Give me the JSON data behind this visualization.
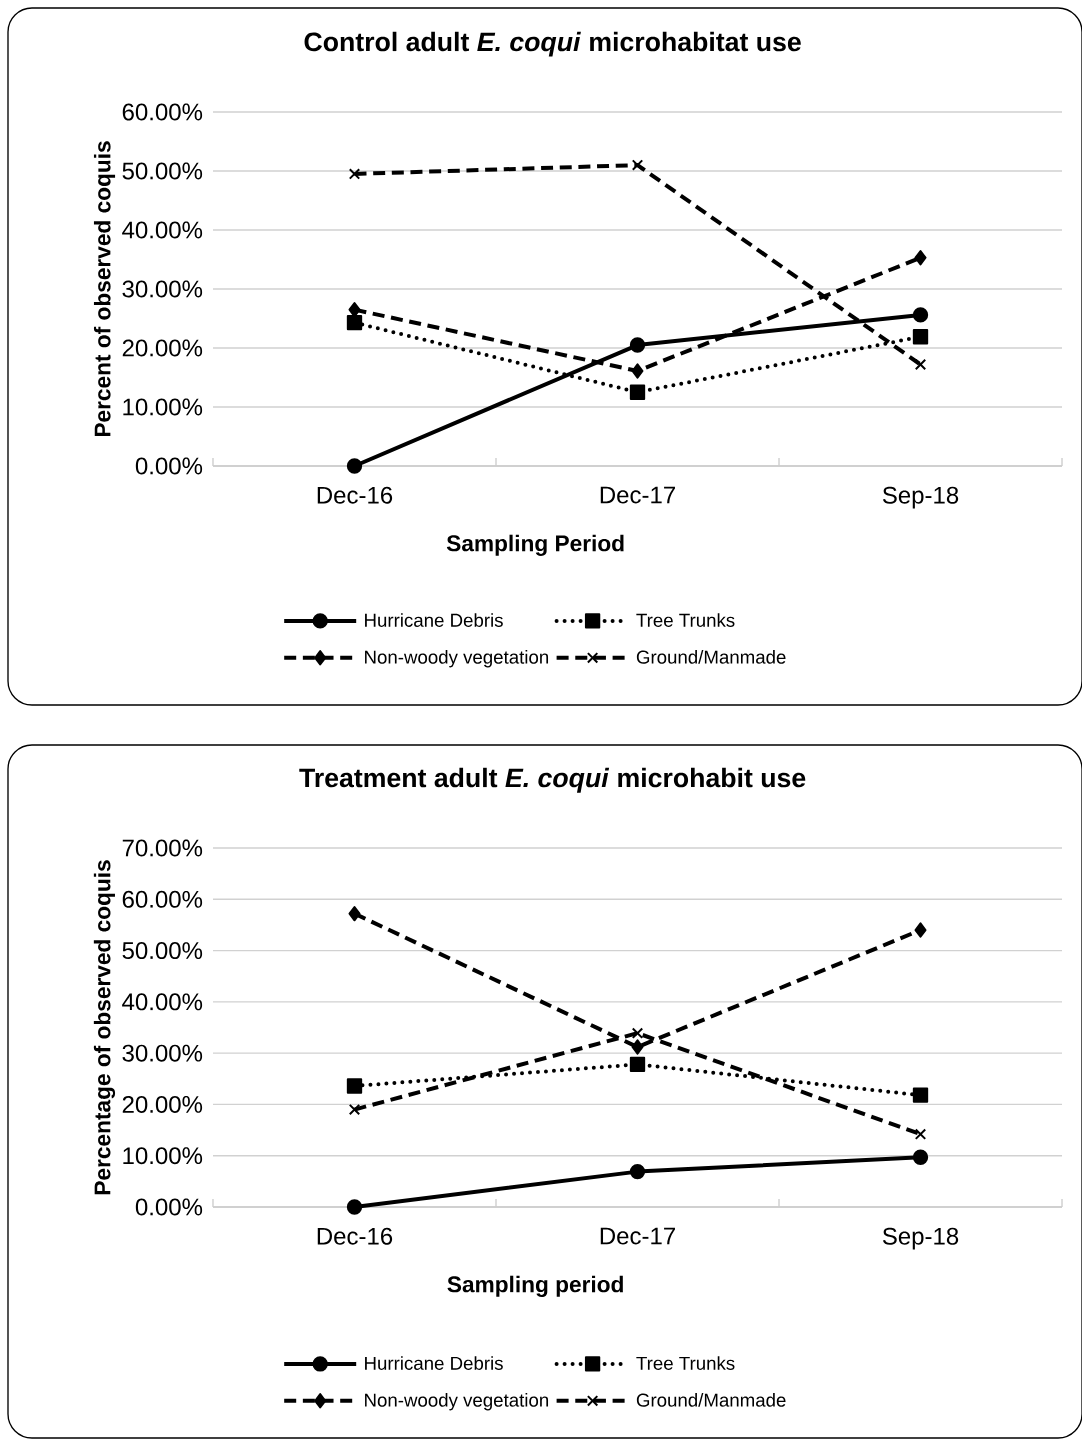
{
  "chart_data": [
    {
      "type": "line",
      "title": "Control adult *E. coqui* microhabitat use",
      "xlabel": "Sampling Period",
      "ylabel": "Percent of observed coquis",
      "categories": [
        "Dec-16",
        "Dec-17",
        "Sep-18"
      ],
      "ylim": [
        0,
        60
      ],
      "yticks": [
        {
          "value": 0,
          "label": "0.00%"
        },
        {
          "value": 10,
          "label": "10.00%"
        },
        {
          "value": 20,
          "label": "20.00%"
        },
        {
          "value": 30,
          "label": "30.00%"
        },
        {
          "value": 40,
          "label": "40.00%"
        },
        {
          "value": 50,
          "label": "50.00%"
        },
        {
          "value": 60,
          "label": "60.00%"
        }
      ],
      "grid": "y",
      "legend": "bottom",
      "series": [
        {
          "name": "Hurricane Debris",
          "color": "#000000",
          "marker": "circle",
          "line_style": "solid",
          "values": [
            0,
            20.5,
            25.6
          ]
        },
        {
          "name": "Tree Trunks",
          "color": "#000000",
          "marker": "square",
          "line_style": "dotted",
          "values": [
            24.3,
            12.5,
            21.9
          ]
        },
        {
          "name": "Non-woody vegetation",
          "color": "#000000",
          "marker": "diamond",
          "line_style": "dashed",
          "values": [
            26.5,
            16.1,
            35.3
          ]
        },
        {
          "name": "Ground/Manmade",
          "color": "#000000",
          "marker": "cross",
          "line_style": "dashed",
          "values": [
            49.5,
            51.0,
            17.2
          ]
        }
      ]
    },
    {
      "type": "line",
      "title": "Treatment adult *E. coqui* microhabit use",
      "xlabel": "Sampling period",
      "ylabel": "Percentage of observed coquis",
      "categories": [
        "Dec-16",
        "Dec-17",
        "Sep-18"
      ],
      "ylim": [
        0,
        70
      ],
      "yticks": [
        {
          "value": 0,
          "label": "0.00%"
        },
        {
          "value": 10,
          "label": "10.00%"
        },
        {
          "value": 20,
          "label": "20.00%"
        },
        {
          "value": 30,
          "label": "30.00%"
        },
        {
          "value": 40,
          "label": "40.00%"
        },
        {
          "value": 50,
          "label": "50.00%"
        },
        {
          "value": 60,
          "label": "60.00%"
        },
        {
          "value": 70,
          "label": "70.00%"
        }
      ],
      "grid": "y",
      "legend": "bottom",
      "series": [
        {
          "name": "Hurricane Debris",
          "color": "#000000",
          "marker": "circle",
          "line_style": "solid",
          "values": [
            0,
            6.9,
            9.7
          ]
        },
        {
          "name": "Tree Trunks",
          "color": "#000000",
          "marker": "square",
          "line_style": "dotted",
          "values": [
            23.6,
            27.8,
            21.8
          ]
        },
        {
          "name": "Non-woody vegetation",
          "color": "#000000",
          "marker": "diamond",
          "line_style": "dashed",
          "values": [
            57.2,
            31.2,
            54.0
          ]
        },
        {
          "name": "Ground/Manmade",
          "color": "#000000",
          "marker": "cross",
          "line_style": "dashed",
          "values": [
            19.0,
            33.9,
            14.2
          ]
        }
      ]
    }
  ]
}
